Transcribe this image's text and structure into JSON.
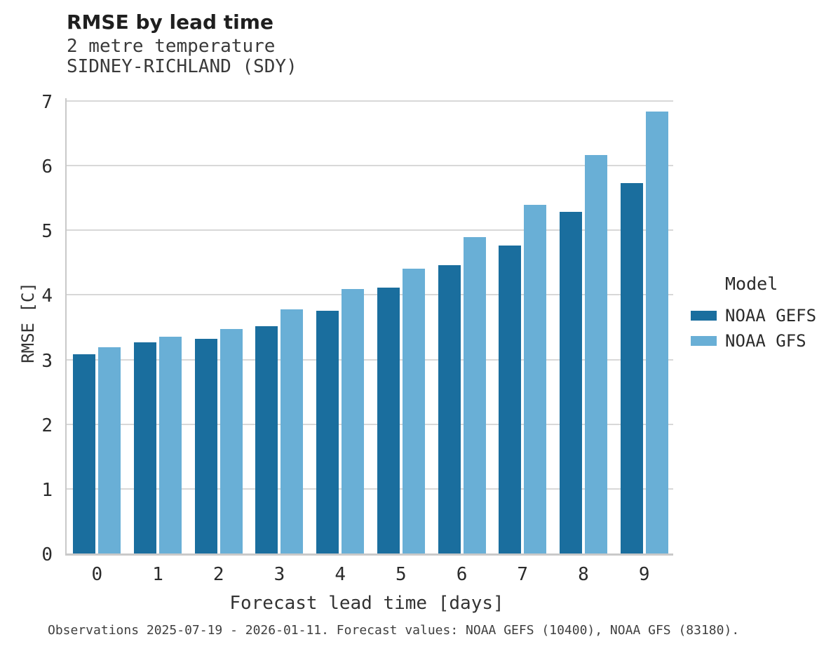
{
  "header": {
    "title": "RMSE by lead time",
    "subtitle_line1": "2 metre temperature",
    "subtitle_line2": "SIDNEY-RICHLAND (SDY)"
  },
  "footer": {
    "caption": "Observations 2025-07-19 - 2026-01-11. Forecast values: NOAA GEFS (10400), NOAA GFS (83180)."
  },
  "chart_data": {
    "type": "bar",
    "title": "RMSE by lead time",
    "subtitle": [
      "2 metre temperature",
      "SIDNEY-RICHLAND (SDY)"
    ],
    "xlabel": "Forecast lead time [days]",
    "ylabel": "RMSE [C]",
    "categories": [
      "0",
      "1",
      "2",
      "3",
      "4",
      "5",
      "6",
      "7",
      "8",
      "9"
    ],
    "series": [
      {
        "name": "NOAA GEFS",
        "color": "#1A6E9E",
        "values": [
          3.08,
          3.27,
          3.32,
          3.52,
          3.76,
          4.11,
          4.46,
          4.76,
          5.29,
          5.73
        ]
      },
      {
        "name": "NOAA GFS",
        "color": "#69AFD6",
        "values": [
          3.19,
          3.35,
          3.47,
          3.78,
          4.09,
          4.41,
          4.89,
          5.39,
          6.16,
          6.84
        ]
      }
    ],
    "ylim": [
      0,
      7
    ],
    "yticks": [
      0,
      1,
      2,
      3,
      4,
      5,
      6,
      7
    ],
    "grid": "horizontal",
    "legend": {
      "title": "Model",
      "position": "right",
      "entries": [
        "NOAA GEFS",
        "NOAA GFS"
      ]
    }
  }
}
